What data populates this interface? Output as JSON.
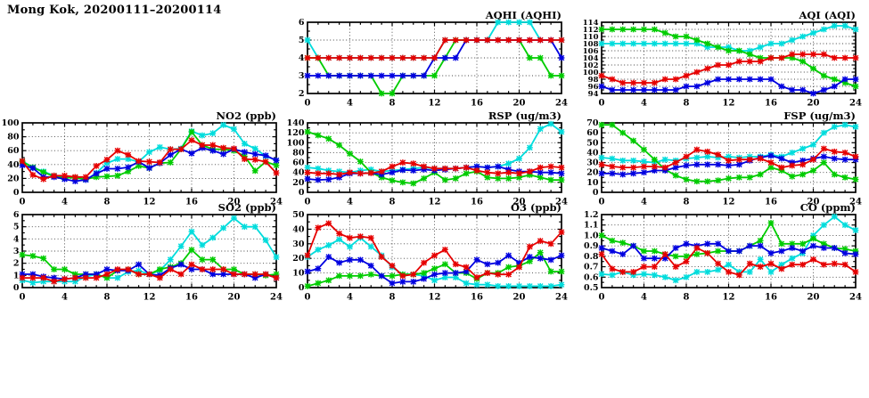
{
  "page": {
    "title": "Mong Kok, 20200111–20200114",
    "background": "#ffffff"
  },
  "palette": {
    "cyan": "#00dcdc",
    "green": "#00cc00",
    "blue": "#0000e0",
    "red": "#e60000"
  },
  "x_axis": {
    "min": 0,
    "max": 24,
    "tick_labels": [
      "0",
      "4",
      "8",
      "12",
      "16",
      "20",
      "24"
    ],
    "minor_tick_step": 1,
    "grid_ticks": [
      4,
      8,
      12,
      16,
      20
    ]
  },
  "chart_data": [
    {
      "id": "aqhi",
      "type": "line",
      "title": "AQHI (AQHI)",
      "ylim": [
        2,
        6
      ],
      "y_ticks": [
        "2",
        "3",
        "4",
        "5",
        "6"
      ],
      "series": [
        {
          "color_name": "cyan",
          "values": [
            5,
            4,
            4,
            4,
            4,
            4,
            4,
            4,
            4,
            4,
            4,
            4,
            4,
            5,
            5,
            5,
            5,
            5,
            6,
            6,
            6,
            6,
            5,
            5,
            5
          ]
        },
        {
          "color_name": "green",
          "values": [
            4,
            4,
            3,
            3,
            3,
            3,
            3,
            2,
            2,
            3,
            3,
            3,
            3,
            4,
            5,
            5,
            5,
            5,
            5,
            5,
            5,
            4,
            4,
            3,
            3
          ]
        },
        {
          "color_name": "blue",
          "values": [
            3,
            3,
            3,
            3,
            3,
            3,
            3,
            3,
            3,
            3,
            3,
            3,
            4,
            4,
            4,
            5,
            5,
            5,
            5,
            5,
            5,
            5,
            5,
            5,
            4
          ]
        },
        {
          "color_name": "red",
          "values": [
            4,
            4,
            4,
            4,
            4,
            4,
            4,
            4,
            4,
            4,
            4,
            4,
            4,
            5,
            5,
            5,
            5,
            5,
            5,
            5,
            5,
            5,
            5,
            5,
            5
          ]
        }
      ]
    },
    {
      "id": "aqi",
      "type": "line",
      "title": "AQI (AQI)",
      "ylim": [
        94,
        114
      ],
      "y_ticks": [
        "94",
        "96",
        "98",
        "100",
        "102",
        "104",
        "106",
        "108",
        "110",
        "112",
        "114"
      ],
      "series": [
        {
          "color_name": "cyan",
          "values": [
            108,
            108,
            108,
            108,
            108,
            108,
            108,
            108,
            108,
            108,
            107,
            107,
            107,
            106,
            106,
            107,
            108,
            108,
            109,
            110,
            111,
            112,
            113,
            113,
            112
          ]
        },
        {
          "color_name": "green",
          "values": [
            112,
            112,
            112,
            112,
            112,
            112,
            111,
            110,
            110,
            109,
            108,
            107,
            106,
            106,
            105,
            104,
            104,
            104,
            104,
            103,
            101,
            99,
            98,
            97,
            96
          ]
        },
        {
          "color_name": "blue",
          "values": [
            96,
            95,
            95,
            95,
            95,
            95,
            95,
            95,
            96,
            96,
            97,
            98,
            98,
            98,
            98,
            98,
            98,
            96,
            95,
            95,
            94,
            95,
            96,
            98,
            98
          ]
        },
        {
          "color_name": "red",
          "values": [
            99,
            98,
            97,
            97,
            97,
            97,
            98,
            98,
            99,
            100,
            101,
            102,
            102,
            103,
            103,
            103,
            104,
            104,
            105,
            105,
            105,
            105,
            104,
            104,
            104
          ]
        }
      ]
    },
    {
      "id": "no2",
      "type": "line",
      "title": "NO2 (ppb)",
      "ylim": [
        0,
        100
      ],
      "y_ticks": [
        "0",
        "20",
        "40",
        "60",
        "80",
        "100"
      ],
      "series": [
        {
          "color_name": "cyan",
          "values": [
            45,
            36,
            30,
            24,
            21,
            21,
            18,
            28,
            42,
            48,
            48,
            44,
            58,
            65,
            62,
            63,
            88,
            82,
            85,
            97,
            91,
            70,
            63,
            52,
            46
          ]
        },
        {
          "color_name": "green",
          "values": [
            44,
            36,
            29,
            23,
            21,
            21,
            19,
            22,
            23,
            24,
            30,
            38,
            35,
            42,
            43,
            62,
            87,
            68,
            62,
            62,
            60,
            52,
            31,
            44,
            39
          ]
        },
        {
          "color_name": "blue",
          "values": [
            39,
            35,
            22,
            22,
            19,
            16,
            18,
            27,
            34,
            34,
            36,
            44,
            35,
            42,
            54,
            62,
            56,
            64,
            60,
            55,
            62,
            58,
            55,
            53,
            46
          ]
        },
        {
          "color_name": "red",
          "values": [
            45,
            25,
            19,
            24,
            24,
            22,
            22,
            38,
            47,
            60,
            54,
            45,
            44,
            43,
            62,
            62,
            75,
            68,
            68,
            64,
            63,
            48,
            47,
            44,
            28
          ]
        }
      ]
    },
    {
      "id": "rsp",
      "type": "line",
      "title": "RSP (ug/m3)",
      "ylim": [
        0,
        140
      ],
      "y_ticks": [
        "0",
        "20",
        "40",
        "60",
        "80",
        "100",
        "120",
        "140"
      ],
      "series": [
        {
          "color_name": "cyan",
          "values": [
            50,
            48,
            44,
            42,
            40,
            44,
            46,
            42,
            44,
            46,
            48,
            50,
            48,
            48,
            48,
            50,
            52,
            50,
            52,
            58,
            68,
            90,
            128,
            138,
            122
          ]
        },
        {
          "color_name": "green",
          "values": [
            122,
            115,
            108,
            95,
            78,
            62,
            40,
            30,
            24,
            20,
            18,
            28,
            40,
            25,
            28,
            38,
            42,
            30,
            28,
            28,
            30,
            35,
            30,
            25,
            25
          ]
        },
        {
          "color_name": "blue",
          "values": [
            27,
            25,
            26,
            30,
            38,
            38,
            39,
            36,
            40,
            45,
            44,
            46,
            44,
            46,
            48,
            50,
            52,
            50,
            52,
            46,
            42,
            42,
            40,
            40,
            38
          ]
        },
        {
          "color_name": "red",
          "values": [
            40,
            38,
            38,
            36,
            40,
            38,
            39,
            42,
            52,
            60,
            58,
            52,
            48,
            48,
            48,
            50,
            44,
            40,
            38,
            40,
            38,
            42,
            50,
            52,
            50
          ]
        }
      ]
    },
    {
      "id": "fsp",
      "type": "line",
      "title": "FSP (ug/m3)",
      "ylim": [
        0,
        70
      ],
      "y_ticks": [
        "0",
        "10",
        "20",
        "30",
        "40",
        "50",
        "60",
        "70"
      ],
      "series": [
        {
          "color_name": "cyan",
          "values": [
            35,
            34,
            32,
            32,
            31,
            30,
            33,
            32,
            34,
            35,
            36,
            35,
            36,
            35,
            36,
            36,
            38,
            36,
            40,
            44,
            48,
            60,
            66,
            68,
            66
          ]
        },
        {
          "color_name": "green",
          "values": [
            68,
            68,
            60,
            52,
            43,
            33,
            23,
            17,
            13,
            11,
            11,
            12,
            14,
            15,
            15,
            18,
            25,
            22,
            16,
            18,
            22,
            30,
            18,
            15,
            13
          ]
        },
        {
          "color_name": "blue",
          "values": [
            19,
            19,
            18,
            19,
            20,
            22,
            22,
            25,
            27,
            28,
            28,
            28,
            27,
            28,
            32,
            35,
            37,
            34,
            30,
            32,
            34,
            36,
            34,
            33,
            33
          ]
        },
        {
          "color_name": "red",
          "values": [
            28,
            26,
            25,
            25,
            26,
            26,
            25,
            30,
            36,
            43,
            41,
            38,
            32,
            33,
            33,
            34,
            30,
            25,
            27,
            28,
            33,
            44,
            41,
            40,
            36
          ]
        }
      ]
    },
    {
      "id": "so2",
      "type": "line",
      "title": "SO2 (ppb)",
      "ylim": [
        0,
        6
      ],
      "y_ticks": [
        "0",
        "1",
        "2",
        "3",
        "4",
        "5",
        "6"
      ],
      "series": [
        {
          "color_name": "cyan",
          "values": [
            0.6,
            0.4,
            0.5,
            0.5,
            0.5,
            0.5,
            0.9,
            1.1,
            0.8,
            0.8,
            1.3,
            1.4,
            1.1,
            1.4,
            2.3,
            3.4,
            4.6,
            3.5,
            4.1,
            4.9,
            5.7,
            5.0,
            5.0,
            3.9,
            2.5
          ]
        },
        {
          "color_name": "green",
          "values": [
            2.7,
            2.6,
            2.4,
            1.5,
            1.5,
            1.1,
            1.1,
            1.1,
            0.8,
            1.4,
            1.5,
            1.1,
            1.1,
            1.5,
            1.7,
            2.0,
            3.1,
            2.3,
            2.3,
            1.5,
            1.5,
            1.1,
            1.1,
            1.0,
            1.1
          ]
        },
        {
          "color_name": "blue",
          "values": [
            1.1,
            1.1,
            0.9,
            0.8,
            0.7,
            0.8,
            1.1,
            1.1,
            1.5,
            1.4,
            1.4,
            1.9,
            1.1,
            1.0,
            1.6,
            1.9,
            1.5,
            1.5,
            1.1,
            1.1,
            1.1,
            1.1,
            0.8,
            1.1,
            0.8
          ]
        },
        {
          "color_name": "red",
          "values": [
            0.8,
            0.8,
            0.8,
            0.5,
            0.7,
            0.8,
            0.8,
            0.8,
            1.1,
            1.5,
            1.5,
            1.1,
            1.1,
            0.8,
            1.5,
            1.1,
            1.9,
            1.5,
            1.5,
            1.5,
            1.1,
            1.1,
            1.1,
            1.1,
            0.8
          ]
        }
      ]
    },
    {
      "id": "o3",
      "type": "line",
      "title": "O3 (ppb)",
      "ylim": [
        0,
        50
      ],
      "y_ticks": [
        "0",
        "10",
        "20",
        "30",
        "40",
        "50"
      ],
      "series": [
        {
          "color_name": "cyan",
          "values": [
            21,
            26,
            29,
            33,
            28,
            34,
            28,
            22,
            14,
            9,
            9,
            8,
            5,
            7,
            7,
            3,
            2,
            2,
            1,
            1,
            1,
            1,
            1,
            1,
            2
          ]
        },
        {
          "color_name": "green",
          "values": [
            1,
            3,
            5,
            8,
            8,
            8,
            9,
            8,
            8,
            9,
            9,
            10,
            13,
            16,
            10,
            10,
            6,
            10,
            10,
            14,
            15,
            18,
            24,
            11,
            11
          ]
        },
        {
          "color_name": "blue",
          "values": [
            11,
            13,
            21,
            17,
            19,
            19,
            15,
            8,
            3,
            4,
            4,
            6,
            9,
            10,
            10,
            11,
            19,
            16,
            17,
            22,
            17,
            21,
            20,
            19,
            22
          ]
        },
        {
          "color_name": "red",
          "values": [
            22,
            41,
            44,
            37,
            34,
            35,
            34,
            21,
            15,
            8,
            9,
            17,
            22,
            26,
            16,
            14,
            7,
            10,
            9,
            9,
            14,
            28,
            32,
            30,
            38
          ]
        }
      ]
    },
    {
      "id": "co",
      "type": "line",
      "title": "CO (ppm)",
      "ylim": [
        0.5,
        1.2
      ],
      "y_ticks": [
        "0.5",
        "0.6",
        "0.7",
        "0.8",
        "0.9",
        "1.0",
        "1.1",
        "1.2"
      ],
      "series": [
        {
          "color_name": "cyan",
          "values": [
            0.63,
            0.62,
            0.65,
            0.62,
            0.63,
            0.62,
            0.6,
            0.57,
            0.6,
            0.65,
            0.65,
            0.67,
            0.72,
            0.65,
            0.65,
            0.77,
            0.65,
            0.72,
            0.78,
            0.83,
            1.0,
            1.1,
            1.18,
            1.1,
            1.05
          ]
        },
        {
          "color_name": "green",
          "values": [
            1.0,
            0.95,
            0.93,
            0.9,
            0.85,
            0.85,
            0.82,
            0.8,
            0.8,
            0.82,
            0.83,
            0.85,
            0.85,
            0.85,
            0.9,
            0.95,
            1.12,
            0.92,
            0.92,
            0.92,
            0.97,
            0.92,
            0.88,
            0.87,
            0.85
          ]
        },
        {
          "color_name": "blue",
          "values": [
            0.88,
            0.85,
            0.82,
            0.9,
            0.78,
            0.78,
            0.78,
            0.88,
            0.92,
            0.9,
            0.92,
            0.92,
            0.85,
            0.85,
            0.9,
            0.9,
            0.83,
            0.85,
            0.88,
            0.85,
            0.9,
            0.88,
            0.88,
            0.83,
            0.82
          ]
        },
        {
          "color_name": "red",
          "values": [
            0.82,
            0.68,
            0.65,
            0.65,
            0.7,
            0.7,
            0.82,
            0.7,
            0.75,
            0.88,
            0.83,
            0.73,
            0.65,
            0.62,
            0.73,
            0.7,
            0.73,
            0.68,
            0.72,
            0.72,
            0.77,
            0.72,
            0.73,
            0.72,
            0.65
          ]
        }
      ]
    }
  ]
}
